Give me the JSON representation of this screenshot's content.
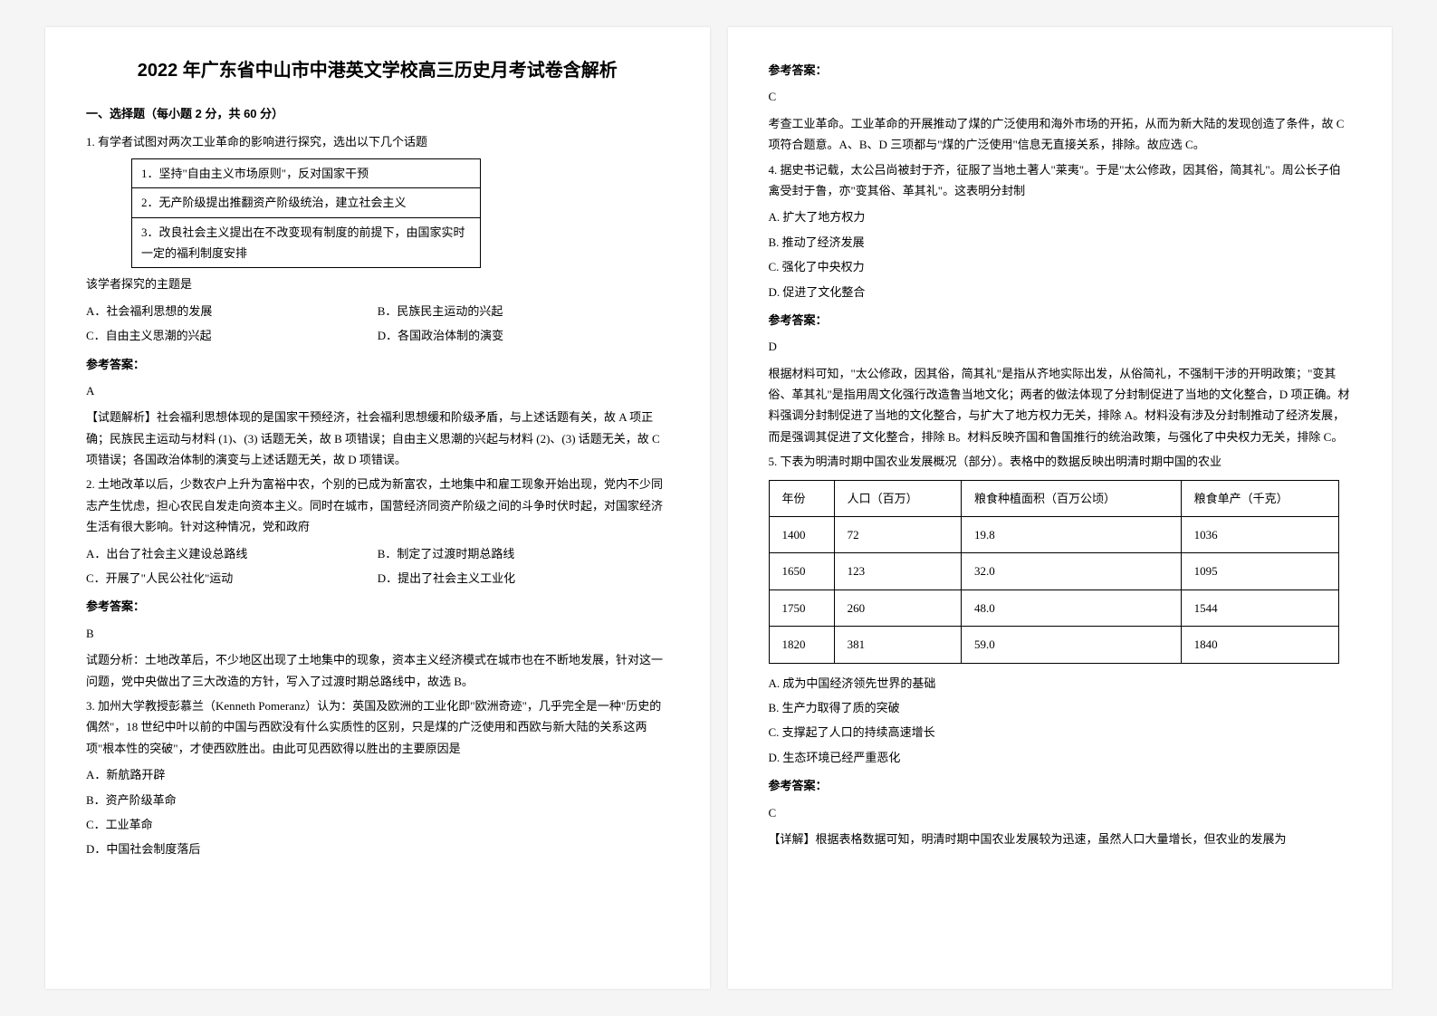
{
  "title": "2022 年广东省中山市中港英文学校高三历史月考试卷含解析",
  "section1": "一、选择题（每小题 2 分，共 60 分）",
  "q1": {
    "stem": "1. 有学者试图对两次工业革命的影响进行探究，选出以下几个话题",
    "box": [
      "1．坚持\"自由主义市场原则\"，反对国家干预",
      "2．无产阶级提出推翻资产阶级统治，建立社会主义",
      "3．改良社会主义提出在不改变现有制度的前提下，由国家实时一定的福利制度安排"
    ],
    "followup": "该学者探究的主题是",
    "opts": {
      "A": "A．社会福利思想的发展",
      "B": "B．民族民主运动的兴起",
      "C": "C．自由主义思潮的兴起",
      "D": "D．各国政治体制的演变"
    },
    "ans_label": "参考答案：",
    "ans": "A",
    "analysis": "【试题解析】社会福利思想体现的是国家干预经济，社会福利思想缓和阶级矛盾，与上述话题有关，故 A 项正确；民族民主运动与材料 (1)、(3) 话题无关，故 B 项错误；自由主义思潮的兴起与材料 (2)、(3) 话题无关，故 C 项错误；各国政治体制的演变与上述话题无关，故 D 项错误。"
  },
  "q2": {
    "stem": "2. 土地改革以后，少数农户上升为富裕中农，个别的已成为新富农，土地集中和雇工现象开始出现，党内不少同志产生忧虑，担心农民自发走向资本主义。同时在城市，国营经济同资产阶级之间的斗争时伏时起，对国家经济生活有很大影响。针对这种情况，党和政府",
    "opts": {
      "A": "A．出台了社会主义建设总路线",
      "B": "B．制定了过渡时期总路线",
      "C": "C．开展了\"人民公社化\"运动",
      "D": "D．提出了社会主义工业化"
    },
    "ans_label": "参考答案：",
    "ans": "B",
    "analysis": "试题分析：土地改革后，不少地区出现了土地集中的现象，资本主义经济模式在城市也在不断地发展，针对这一问题，党中央做出了三大改造的方针，写入了过渡时期总路线中，故选 B。"
  },
  "q3": {
    "stem": "3. 加州大学教授彭慕兰（Kenneth Pomeranz）认为：英国及欧洲的工业化即\"欧洲奇迹\"，几乎完全是一种\"历史的偶然\"，18 世纪中叶以前的中国与西欧没有什么实质性的区别，只是煤的广泛使用和西欧与新大陆的关系这两项\"根本性的突破\"，才使西欧胜出。由此可见西欧得以胜出的主要原因是",
    "opts": {
      "A": "A．新航路开辟",
      "B": "B．资产阶级革命",
      "C": "C．工业革命",
      "D": "D．中国社会制度落后"
    },
    "ans_label": "参考答案：",
    "ans": "C",
    "analysis": "考查工业革命。工业革命的开展推动了煤的广泛使用和海外市场的开拓，从而为新大陆的发现创造了条件，故 C 项符合题意。A、B、D 三项都与\"煤的广泛使用\"信息无直接关系，排除。故应选 C。"
  },
  "q4": {
    "stem": "4. 据史书记载，太公吕尚被封于齐，征服了当地土著人\"莱夷\"。于是\"太公修政，因其俗，简其礼\"。周公长子伯禽受封于鲁，亦\"变其俗、革其礼\"。这表明分封制",
    "opts": {
      "A": "A. 扩大了地方权力",
      "B": "B. 推动了经济发展",
      "C": "C. 强化了中央权力",
      "D": "D. 促进了文化整合"
    },
    "ans_label": "参考答案：",
    "ans": "D",
    "analysis": "根据材料可知，\"太公修政，因其俗，简其礼\"是指从齐地实际出发，从俗简礼，不强制干涉的开明政策；\"变其俗、革其礼\"是指用周文化强行改造鲁当地文化；两者的做法体现了分封制促进了当地的文化整合，D 项正确。材料强调分封制促进了当地的文化整合，与扩大了地方权力无关，排除 A。材料没有涉及分封制推动了经济发展，而是强调其促进了文化整合，排除 B。材料反映齐国和鲁国推行的统治政策，与强化了中央权力无关，排除 C。"
  },
  "q5": {
    "stem": "5. 下表为明清时期中国农业发展概况（部分）。表格中的数据反映出明清时期中国的农业",
    "table": {
      "headers": [
        "年份",
        "人口（百万）",
        "粮食种植面积（百万公顷）",
        "粮食单产（千克）"
      ],
      "rows": [
        [
          "1400",
          "72",
          "19.8",
          "1036"
        ],
        [
          "1650",
          "123",
          "32.0",
          "1095"
        ],
        [
          "1750",
          "260",
          "48.0",
          "1544"
        ],
        [
          "1820",
          "381",
          "59.0",
          "1840"
        ]
      ]
    },
    "opts": {
      "A": "A. 成为中国经济领先世界的基础",
      "B": "B. 生产力取得了质的突破",
      "C": "C. 支撑起了人口的持续高速增长",
      "D": "D. 生态环境已经严重恶化"
    },
    "ans_label": "参考答案：",
    "ans": "C",
    "analysis": "【详解】根据表格数据可知，明清时期中国农业发展较为迅速，虽然人口大量增长，但农业的发展为"
  }
}
